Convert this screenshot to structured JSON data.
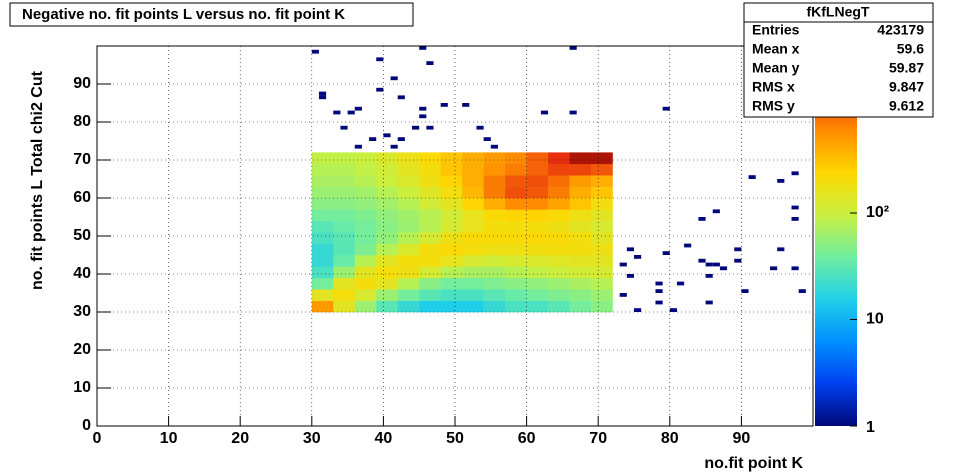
{
  "chart_data": {
    "type": "heatmap",
    "title": "Negative no. fit points L versus no. fit point K",
    "x_label": "no.fit point K",
    "y_label": "no. fit points  L   Total chi2 Cut",
    "xlim": [
      0,
      100
    ],
    "ylim": [
      0,
      100
    ],
    "xticks": [
      0,
      10,
      20,
      30,
      40,
      50,
      60,
      70,
      80,
      90
    ],
    "yticks": [
      0,
      10,
      20,
      30,
      40,
      50,
      60,
      70,
      80,
      90
    ],
    "grid": true,
    "zlog": true,
    "zlim": [
      1,
      3700
    ],
    "zticks": [
      1,
      10,
      {
        "value": 100,
        "label": "10²"
      }
    ],
    "palette": [
      "#00087a",
      "#0040f0",
      "#0090ff",
      "#20d0e8",
      "#70eea0",
      "#c8f040",
      "#ffd800",
      "#ff8c00",
      "#e83010",
      "#800000"
    ],
    "xbins": [
      30,
      33,
      36,
      39,
      42,
      45,
      48,
      51,
      54,
      57,
      60,
      63,
      66,
      69,
      72
    ],
    "ybins": [
      30,
      33,
      36,
      39,
      42,
      45,
      48,
      51,
      54,
      57,
      60,
      63,
      66,
      69,
      72
    ],
    "z": [
      [
        500,
        150,
        60,
        30,
        20,
        15,
        15,
        15,
        20,
        25,
        25,
        30,
        40,
        50
      ],
      [
        150,
        200,
        120,
        60,
        40,
        30,
        25,
        25,
        30,
        35,
        40,
        45,
        50,
        60
      ],
      [
        40,
        150,
        200,
        150,
        80,
        50,
        40,
        40,
        45,
        50,
        55,
        60,
        70,
        80
      ],
      [
        25,
        60,
        150,
        200,
        180,
        120,
        80,
        70,
        70,
        80,
        90,
        100,
        110,
        120
      ],
      [
        20,
        35,
        80,
        150,
        200,
        200,
        160,
        120,
        110,
        120,
        130,
        140,
        150,
        150
      ],
      [
        20,
        30,
        45,
        80,
        130,
        200,
        220,
        200,
        180,
        180,
        190,
        200,
        200,
        180
      ],
      [
        25,
        30,
        40,
        55,
        80,
        120,
        180,
        220,
        220,
        220,
        220,
        220,
        200,
        150
      ],
      [
        30,
        35,
        40,
        50,
        60,
        80,
        120,
        160,
        200,
        200,
        200,
        180,
        150,
        120
      ],
      [
        40,
        40,
        45,
        55,
        65,
        80,
        110,
        160,
        220,
        250,
        250,
        220,
        180,
        150
      ],
      [
        50,
        50,
        55,
        65,
        80,
        110,
        150,
        250,
        400,
        600,
        600,
        450,
        300,
        200
      ],
      [
        60,
        60,
        65,
        80,
        100,
        140,
        200,
        350,
        700,
        1100,
        1000,
        700,
        400,
        300
      ],
      [
        70,
        70,
        80,
        100,
        130,
        180,
        250,
        400,
        700,
        1000,
        1100,
        800,
        500,
        400
      ],
      [
        80,
        80,
        90,
        110,
        150,
        200,
        300,
        400,
        550,
        700,
        900,
        1200,
        1200,
        1000
      ],
      [
        90,
        90,
        100,
        130,
        170,
        220,
        300,
        400,
        500,
        600,
        900,
        1500,
        2500,
        2500
      ]
    ],
    "sparse": {
      "x": [
        30,
        39,
        45,
        46,
        66,
        41,
        39,
        31,
        31,
        42,
        48,
        51,
        45,
        33,
        35,
        36,
        62,
        66,
        79,
        45,
        34,
        44,
        46,
        53,
        38,
        40,
        42,
        54,
        36,
        41,
        55,
        91,
        97,
        95,
        86,
        97,
        97,
        84,
        74,
        79,
        82,
        75,
        89,
        95,
        84,
        86,
        85,
        73,
        89,
        94,
        97,
        87,
        74,
        85,
        81,
        78,
        98,
        90,
        73,
        78,
        78,
        85,
        75,
        80
      ],
      "y": [
        98,
        96,
        99,
        95,
        99,
        91,
        88,
        87,
        86,
        86,
        84,
        84,
        83,
        82,
        82,
        83,
        82,
        82,
        83,
        81,
        78,
        78,
        78,
        78,
        75,
        76,
        75,
        75,
        73,
        73,
        73,
        65,
        66,
        64,
        56,
        57,
        54,
        54,
        46,
        45,
        47,
        44,
        46,
        46,
        43,
        42,
        42,
        42,
        43,
        41,
        41,
        41,
        39,
        39,
        37,
        37,
        35,
        35,
        34,
        35,
        32,
        32,
        30,
        30
      ],
      "z": [
        1,
        1,
        1,
        1,
        1,
        1,
        1,
        1,
        1,
        1,
        1,
        1,
        1,
        1,
        1,
        1,
        1,
        1,
        1,
        1,
        1,
        1,
        1,
        1,
        1,
        1,
        1,
        1,
        1,
        1,
        1,
        1,
        1,
        1,
        1,
        1,
        1,
        1,
        1,
        1,
        1,
        1,
        1,
        1,
        1,
        1,
        1,
        1,
        1,
        1,
        1,
        1,
        1,
        1,
        1,
        1,
        1,
        1,
        1,
        1,
        1,
        1,
        1,
        1
      ]
    },
    "stats": {
      "name": "fKfLNegT",
      "rows": [
        [
          "Entries",
          423179
        ],
        [
          "Mean x",
          59.6
        ],
        [
          "Mean y",
          59.87
        ],
        [
          "RMS x",
          9.847
        ],
        [
          "RMS y",
          9.612
        ]
      ]
    }
  }
}
